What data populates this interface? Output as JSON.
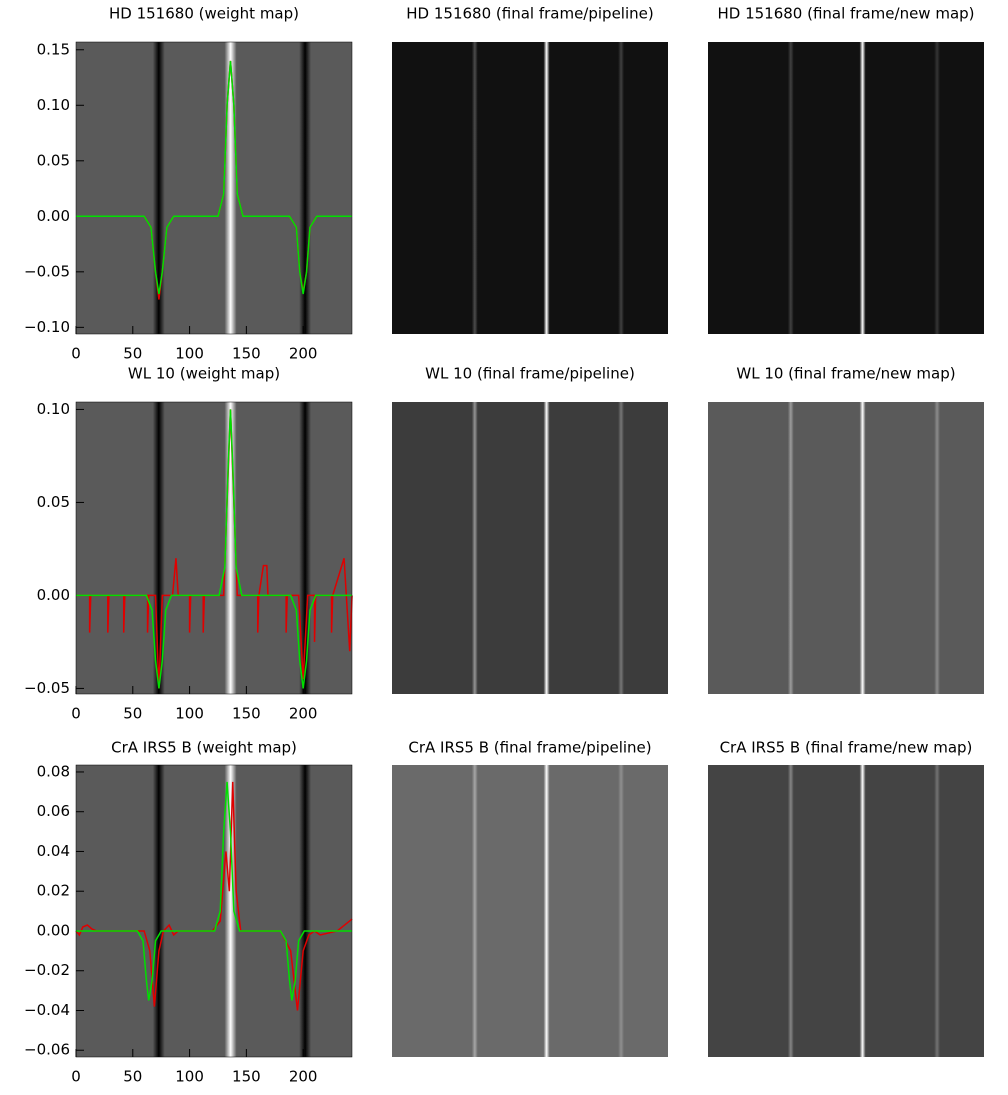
{
  "chart_data": [
    {
      "type": "line",
      "title": "HD 151680 (weight map)",
      "xlim": [
        0,
        243
      ],
      "ylim": [
        -0.106,
        0.157
      ],
      "xticks": [
        0,
        50,
        100,
        150,
        200
      ],
      "yticks": [
        {
          "value": -0.1,
          "label": "−0.10"
        },
        {
          "value": -0.05,
          "label": "−0.05"
        },
        {
          "value": 0,
          "label": "0.00"
        },
        0.05,
        {
          "value": 0.1,
          "label": "0.10"
        },
        0.15
      ],
      "series": [
        {
          "color": "#e00000",
          "x": [
            0,
            60,
            66,
            70,
            73,
            76,
            80,
            86,
            125,
            130,
            133,
            136,
            139,
            142,
            147,
            188,
            194,
            197,
            200,
            203,
            206,
            212,
            243
          ],
          "values": [
            0,
            0,
            -0.01,
            -0.05,
            -0.075,
            -0.05,
            -0.01,
            0,
            0,
            0.02,
            0.1,
            0.14,
            0.1,
            0.02,
            0,
            0,
            -0.01,
            -0.05,
            -0.068,
            -0.05,
            -0.01,
            0,
            0
          ]
        },
        {
          "color": "#00e000",
          "x": [
            0,
            60,
            66,
            70,
            73,
            76,
            80,
            86,
            125,
            130,
            133,
            136,
            139,
            142,
            147,
            188,
            194,
            197,
            200,
            203,
            206,
            212,
            243
          ],
          "values": [
            0,
            0,
            -0.01,
            -0.05,
            -0.07,
            -0.05,
            -0.01,
            0,
            0,
            0.02,
            0.1,
            0.14,
            0.1,
            0.02,
            0,
            0,
            -0.01,
            -0.05,
            -0.07,
            -0.05,
            -0.01,
            0,
            0
          ]
        }
      ]
    },
    {
      "type": "image",
      "title": "HD 151680 (final frame/pipeline)"
    },
    {
      "type": "image",
      "title": "HD 151680 (final frame/new map)"
    },
    {
      "type": "line",
      "title": "WL 10 (weight map)",
      "xlim": [
        0,
        243
      ],
      "ylim": [
        -0.053,
        0.104
      ],
      "xticks": [
        0,
        50,
        100,
        150,
        200
      ],
      "yticks": [
        {
          "value": -0.05,
          "label": "−0.05"
        },
        {
          "value": 0,
          "label": "0.00"
        },
        0.05,
        {
          "value": 0.1,
          "label": "0.10"
        }
      ],
      "series": [
        {
          "color": "#e00000",
          "x": [
            0,
            12,
            12,
            13,
            28,
            28,
            29,
            42,
            42,
            43,
            63,
            63,
            64,
            70,
            73,
            76,
            85,
            88,
            90,
            100,
            100,
            101,
            112,
            112,
            113,
            130,
            136,
            142,
            160,
            160,
            161,
            165,
            168,
            169,
            185,
            185,
            186,
            196,
            200,
            204,
            210,
            210,
            211,
            225,
            225,
            226,
            236,
            238,
            241,
            243
          ],
          "values": [
            0,
            0,
            -0.02,
            0,
            0,
            -0.02,
            0,
            0,
            -0.02,
            0,
            0,
            -0.02,
            0,
            0,
            -0.05,
            0,
            0,
            0.02,
            0,
            0,
            -0.02,
            0,
            0,
            -0.02,
            0,
            0,
            0.1,
            0,
            0,
            -0.02,
            0,
            0.016,
            0.016,
            0,
            0,
            -0.02,
            0,
            0,
            -0.045,
            0,
            0,
            -0.025,
            0,
            0,
            -0.02,
            0,
            0.02,
            0,
            -0.03,
            0
          ]
        },
        {
          "color": "#00e000",
          "x": [
            0,
            62,
            67,
            70,
            73,
            76,
            79,
            84,
            126,
            131,
            134,
            136,
            138,
            141,
            146,
            189,
            194,
            197,
            200,
            203,
            206,
            211,
            243
          ],
          "values": [
            0,
            0,
            -0.008,
            -0.035,
            -0.05,
            -0.035,
            -0.008,
            0,
            0,
            0.015,
            0.07,
            0.1,
            0.07,
            0.015,
            0,
            0,
            -0.008,
            -0.035,
            -0.05,
            -0.035,
            -0.008,
            0,
            0
          ]
        }
      ]
    },
    {
      "type": "image",
      "title": "WL 10 (final frame/pipeline)"
    },
    {
      "type": "image",
      "title": "WL 10 (final frame/new map)"
    },
    {
      "type": "line",
      "title": "CrA IRS5 B (weight map)",
      "xlim": [
        0,
        243
      ],
      "ylim": [
        -0.0634,
        0.0835
      ],
      "xticks": [
        0,
        50,
        100,
        150,
        200
      ],
      "yticks": [
        {
          "value": -0.06,
          "label": "−0.06"
        },
        {
          "value": -0.04,
          "label": "−0.04"
        },
        {
          "value": -0.02,
          "label": "−0.02"
        },
        {
          "value": 0,
          "label": "0.00"
        },
        0.02,
        0.04,
        0.06,
        0.08
      ],
      "series": [
        {
          "color": "#e00000",
          "x": [
            0,
            3,
            6,
            10,
            14,
            18,
            50,
            60,
            65,
            69,
            73,
            77,
            82,
            86,
            90,
            120,
            127,
            132,
            135,
            138,
            141,
            145,
            180,
            189,
            195,
            200,
            205,
            210,
            215,
            230,
            243
          ],
          "values": [
            0,
            -0.002,
            0.002,
            0.003,
            0.001,
            0,
            0,
            0,
            -0.01,
            -0.038,
            -0.01,
            0,
            0.003,
            -0.002,
            0,
            0,
            0.005,
            0.04,
            0.02,
            0.075,
            0.02,
            0,
            0,
            -0.01,
            -0.04,
            -0.01,
            -0.002,
            0,
            -0.002,
            0,
            0.006
          ]
        },
        {
          "color": "#00e000",
          "x": [
            0,
            54,
            59,
            62,
            64,
            67,
            70,
            75,
            122,
            127,
            130,
            133,
            136,
            139,
            144,
            180,
            185,
            188,
            190,
            193,
            196,
            201,
            243
          ],
          "values": [
            0,
            0,
            -0.005,
            -0.025,
            -0.035,
            -0.025,
            -0.005,
            0,
            0,
            0.01,
            0.05,
            0.075,
            0.05,
            0.01,
            0,
            0,
            -0.005,
            -0.025,
            -0.035,
            -0.025,
            -0.005,
            0,
            0
          ]
        }
      ]
    },
    {
      "type": "image",
      "title": "CrA IRS5 B (final frame/pipeline)"
    },
    {
      "type": "image",
      "title": "CrA IRS5 B (final frame/new map)"
    }
  ]
}
